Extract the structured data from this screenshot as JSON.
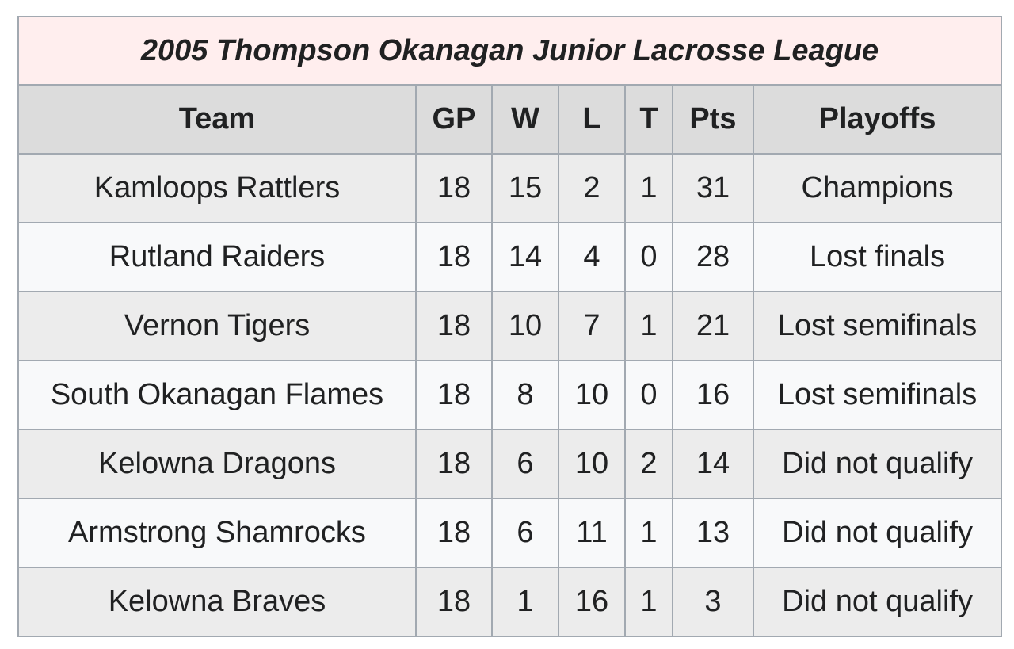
{
  "table": {
    "title": "2005 Thompson Okanagan Junior Lacrosse League",
    "headers": [
      "Team",
      "GP",
      "W",
      "L",
      "T",
      "Pts",
      "Playoffs"
    ],
    "rows": [
      [
        "Kamloops Rattlers",
        "18",
        "15",
        "2",
        "1",
        "31",
        "Champions"
      ],
      [
        "Rutland Raiders",
        "18",
        "14",
        "4",
        "0",
        "28",
        "Lost finals"
      ],
      [
        "Vernon Tigers",
        "18",
        "10",
        "7",
        "1",
        "21",
        "Lost semifinals"
      ],
      [
        "South Okanagan Flames",
        "18",
        "8",
        "10",
        "0",
        "16",
        "Lost semifinals"
      ],
      [
        "Kelowna Dragons",
        "18",
        "6",
        "10",
        "2",
        "14",
        "Did not qualify"
      ],
      [
        "Armstrong Shamrocks",
        "18",
        "6",
        "11",
        "1",
        "13",
        "Did not qualify"
      ],
      [
        "Kelowna Braves",
        "18",
        "1",
        "16",
        "1",
        "3",
        "Did not qualify"
      ]
    ]
  }
}
